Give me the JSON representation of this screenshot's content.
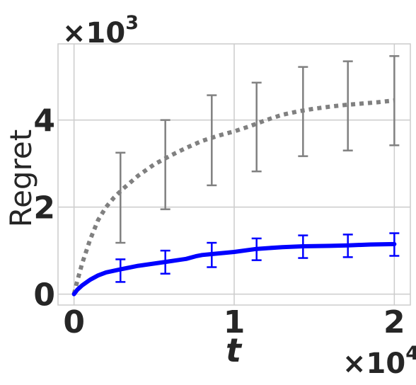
{
  "chart_data": {
    "type": "line",
    "xlabel": "t",
    "ylabel": "Regret",
    "x_multiplier": {
      "base": "×10",
      "exp": "4"
    },
    "y_multiplier": {
      "base": "×10",
      "exp": "3"
    },
    "xlim": [
      -0.1,
      2.1
    ],
    "ylim": [
      -0.25,
      5.75
    ],
    "xticks": [
      0,
      1,
      2
    ],
    "xtick_labels": [
      "0",
      "1",
      "2"
    ],
    "yticks": [
      0,
      2,
      4
    ],
    "ytick_labels": [
      "0",
      "2",
      "4"
    ],
    "grid": true,
    "series": [
      {
        "color": "#808080",
        "style": "dotted",
        "x": [
          0,
          0.02,
          0.05,
          0.1,
          0.15,
          0.2,
          0.25,
          0.3,
          0.4,
          0.5,
          0.6,
          0.7,
          0.8,
          0.9,
          1.0,
          1.1,
          1.2,
          1.3,
          1.4,
          1.5,
          1.6,
          1.7,
          1.8,
          1.9,
          2.0
        ],
        "y": [
          0,
          0.3,
          0.7,
          1.25,
          1.7,
          2.0,
          2.22,
          2.4,
          2.72,
          2.98,
          3.18,
          3.36,
          3.52,
          3.64,
          3.74,
          3.86,
          4.0,
          4.12,
          4.2,
          4.26,
          4.31,
          4.35,
          4.38,
          4.41,
          4.45
        ],
        "errorbars": [
          {
            "x": 0.29,
            "y": 2.22,
            "lo": 1.18,
            "hi": 3.25
          },
          {
            "x": 0.57,
            "y": 2.98,
            "lo": 1.95,
            "hi": 4.0
          },
          {
            "x": 0.86,
            "y": 3.55,
            "lo": 2.5,
            "hi": 4.57
          },
          {
            "x": 1.14,
            "y": 3.84,
            "lo": 2.82,
            "hi": 4.86
          },
          {
            "x": 1.43,
            "y": 4.2,
            "lo": 3.17,
            "hi": 5.22
          },
          {
            "x": 1.71,
            "y": 4.33,
            "lo": 3.3,
            "hi": 5.35
          },
          {
            "x": 2.0,
            "y": 4.45,
            "lo": 3.42,
            "hi": 5.47
          }
        ]
      },
      {
        "color": "#0000ff",
        "style": "solid",
        "x": [
          0,
          0.02,
          0.05,
          0.1,
          0.15,
          0.2,
          0.29,
          0.4,
          0.57,
          0.7,
          0.76,
          0.8,
          0.86,
          1.0,
          1.14,
          1.3,
          1.43,
          1.6,
          1.71,
          1.85,
          2.0
        ],
        "y": [
          0,
          0.1,
          0.2,
          0.33,
          0.43,
          0.5,
          0.57,
          0.65,
          0.74,
          0.81,
          0.87,
          0.9,
          0.92,
          0.97,
          1.04,
          1.08,
          1.1,
          1.11,
          1.12,
          1.14,
          1.15
        ],
        "errorbars": [
          {
            "x": 0.29,
            "y": 0.57,
            "lo": 0.28,
            "hi": 0.8
          },
          {
            "x": 0.57,
            "y": 0.74,
            "lo": 0.47,
            "hi": 1.0
          },
          {
            "x": 0.86,
            "y": 0.92,
            "lo": 0.62,
            "hi": 1.18
          },
          {
            "x": 1.14,
            "y": 1.04,
            "lo": 0.78,
            "hi": 1.28
          },
          {
            "x": 1.43,
            "y": 1.1,
            "lo": 0.83,
            "hi": 1.35
          },
          {
            "x": 1.71,
            "y": 1.12,
            "lo": 0.85,
            "hi": 1.37
          },
          {
            "x": 2.0,
            "y": 1.15,
            "lo": 0.88,
            "hi": 1.4
          }
        ]
      }
    ]
  }
}
